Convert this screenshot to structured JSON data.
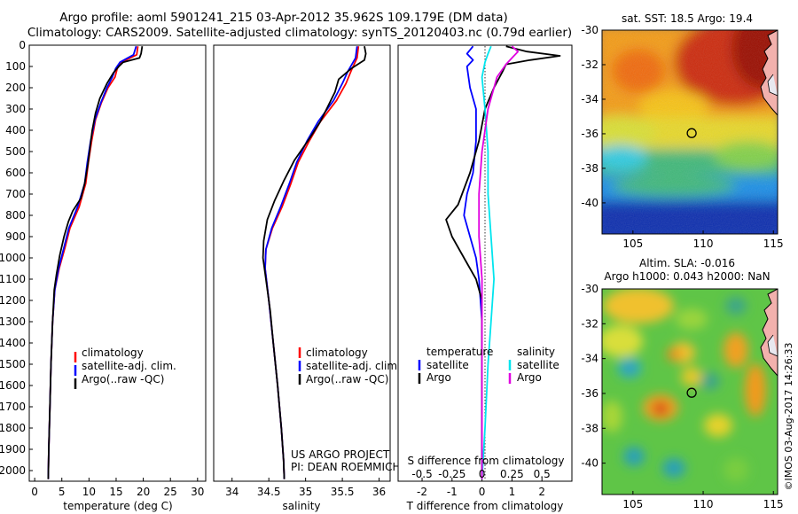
{
  "title": {
    "line1": "Argo profile: aoml 5901241_215 03-Apr-2012 35.962S 109.179E (DM data)",
    "line2": "Climatology: CARS2009. Satellite-adjusted climatology: synTS_20120403.nc (0.79d earlier)"
  },
  "colors": {
    "climatology": "#ff0000",
    "satellite": "#0000ff",
    "argo": "#000000",
    "sal_satellite": "#00e5ee",
    "sal_argo": "#e000e0"
  },
  "depth_axis": {
    "ticks": [
      0,
      100,
      200,
      300,
      400,
      500,
      600,
      700,
      800,
      900,
      1000,
      1100,
      1200,
      1300,
      1400,
      1500,
      1600,
      1700,
      1800,
      1900,
      2000
    ],
    "range": [
      0,
      2050
    ]
  },
  "chart_data": [
    {
      "type": "line",
      "id": "temperature",
      "xlabel": "temperature (deg C)",
      "xlim": [
        -1,
        31.5
      ],
      "xticks": [
        0,
        5,
        10,
        15,
        20,
        25,
        30
      ],
      "legend": [
        "climatology",
        "satellite-adj. clim.",
        "Argo(..raw -QC)"
      ],
      "series": [
        {
          "name": "climatology",
          "color": "#ff0000",
          "points": [
            [
              19.0,
              5
            ],
            [
              18.8,
              45
            ],
            [
              16.0,
              80
            ],
            [
              15.2,
              110
            ],
            [
              14.8,
              150
            ],
            [
              13.5,
              200
            ],
            [
              12.3,
              270
            ],
            [
              11.2,
              350
            ],
            [
              10.5,
              450
            ],
            [
              9.9,
              550
            ],
            [
              9.4,
              650
            ],
            [
              8.2,
              760
            ],
            [
              6.5,
              860
            ],
            [
              5.6,
              950
            ],
            [
              4.5,
              1050
            ],
            [
              3.7,
              1150
            ],
            [
              3.3,
              1300
            ],
            [
              3.0,
              1500
            ],
            [
              2.8,
              1700
            ],
            [
              2.6,
              1900
            ],
            [
              2.5,
              2040
            ]
          ]
        },
        {
          "name": "satellite-adj. clim.",
          "color": "#0000ff",
          "points": [
            [
              18.7,
              5
            ],
            [
              18.2,
              45
            ],
            [
              15.7,
              80
            ],
            [
              14.9,
              110
            ],
            [
              14.3,
              150
            ],
            [
              13.3,
              200
            ],
            [
              12.2,
              270
            ],
            [
              11.1,
              350
            ],
            [
              10.3,
              450
            ],
            [
              9.7,
              550
            ],
            [
              9.2,
              650
            ],
            [
              7.9,
              760
            ],
            [
              6.3,
              860
            ],
            [
              5.4,
              950
            ],
            [
              4.4,
              1050
            ],
            [
              3.7,
              1150
            ],
            [
              3.3,
              1300
            ],
            [
              3.0,
              1500
            ],
            [
              2.8,
              1700
            ],
            [
              2.6,
              1900
            ],
            [
              2.5,
              2040
            ]
          ]
        },
        {
          "name": "Argo(..raw -QC)",
          "color": "#000000",
          "points": [
            [
              19.8,
              5
            ],
            [
              19.6,
              40
            ],
            [
              19.3,
              60
            ],
            [
              16.3,
              80
            ],
            [
              15.5,
              100
            ],
            [
              14.5,
              130
            ],
            [
              13.3,
              180
            ],
            [
              12.0,
              250
            ],
            [
              11.2,
              320
            ],
            [
              10.6,
              400
            ],
            [
              10.2,
              480
            ],
            [
              9.8,
              560
            ],
            [
              9.2,
              650
            ],
            [
              8.5,
              720
            ],
            [
              7.0,
              780
            ],
            [
              6.2,
              830
            ],
            [
              5.4,
              900
            ],
            [
              4.6,
              990
            ],
            [
              4.0,
              1080
            ],
            [
              3.6,
              1150
            ],
            [
              3.3,
              1300
            ],
            [
              3.0,
              1500
            ],
            [
              2.8,
              1700
            ],
            [
              2.6,
              1900
            ],
            [
              2.5,
              2040
            ]
          ]
        }
      ]
    },
    {
      "type": "line",
      "id": "salinity",
      "xlabel": "salinity",
      "xlim": [
        33.75,
        36.15
      ],
      "xticks": [
        34,
        34.5,
        35,
        35.5,
        36
      ],
      "legend": [
        "climatology",
        "satellite-adj. clim.",
        "Argo(..raw -QC)"
      ],
      "series": [
        {
          "name": "climatology",
          "color": "#ff0000",
          "points": [
            [
              35.72,
              5
            ],
            [
              35.7,
              60
            ],
            [
              35.62,
              120
            ],
            [
              35.55,
              180
            ],
            [
              35.42,
              260
            ],
            [
              35.2,
              360
            ],
            [
              35.05,
              450
            ],
            [
              34.9,
              550
            ],
            [
              34.8,
              650
            ],
            [
              34.68,
              760
            ],
            [
              34.55,
              860
            ],
            [
              34.46,
              960
            ],
            [
              34.45,
              1050
            ],
            [
              34.5,
              1200
            ],
            [
              34.56,
              1400
            ],
            [
              34.62,
              1600
            ],
            [
              34.67,
              1800
            ],
            [
              34.7,
              1950
            ],
            [
              34.71,
              2040
            ]
          ]
        },
        {
          "name": "satellite-adj. clim.",
          "color": "#0000ff",
          "points": [
            [
              35.7,
              5
            ],
            [
              35.68,
              60
            ],
            [
              35.58,
              120
            ],
            [
              35.5,
              180
            ],
            [
              35.38,
              260
            ],
            [
              35.17,
              360
            ],
            [
              35.02,
              450
            ],
            [
              34.88,
              550
            ],
            [
              34.78,
              650
            ],
            [
              34.66,
              760
            ],
            [
              34.54,
              860
            ],
            [
              34.46,
              960
            ],
            [
              34.45,
              1050
            ],
            [
              34.5,
              1200
            ],
            [
              34.56,
              1400
            ],
            [
              34.62,
              1600
            ],
            [
              34.67,
              1800
            ],
            [
              34.7,
              1950
            ],
            [
              34.71,
              2040
            ]
          ]
        },
        {
          "name": "Argo(..raw -QC)",
          "color": "#000000",
          "points": [
            [
              35.8,
              5
            ],
            [
              35.82,
              40
            ],
            [
              35.8,
              70
            ],
            [
              35.62,
              110
            ],
            [
              35.45,
              160
            ],
            [
              35.4,
              220
            ],
            [
              35.3,
              290
            ],
            [
              35.2,
              360
            ],
            [
              35.05,
              440
            ],
            [
              34.85,
              540
            ],
            [
              34.7,
              640
            ],
            [
              34.58,
              730
            ],
            [
              34.48,
              820
            ],
            [
              34.43,
              920
            ],
            [
              34.42,
              1000
            ],
            [
              34.46,
              1100
            ],
            [
              34.52,
              1250
            ],
            [
              34.56,
              1400
            ],
            [
              34.62,
              1600
            ],
            [
              34.67,
              1800
            ],
            [
              34.7,
              1950
            ],
            [
              34.71,
              2040
            ]
          ]
        }
      ]
    },
    {
      "type": "line",
      "id": "difference",
      "xlabel": "T difference from climatology",
      "xlabel2": "S difference from climatology",
      "xlim": [
        -2.8,
        3.0
      ],
      "xticks": [
        -2,
        -1,
        0,
        1,
        2
      ],
      "sticks": [
        {
          "label": "-0.5",
          "x": -2
        },
        {
          "label": "-0.25",
          "x": -1
        },
        {
          "label": "0",
          "x": 0
        },
        {
          "label": "0.25",
          "x": 1
        },
        {
          "label": "0.5",
          "x": 2
        }
      ],
      "legend_temp_title": "temperature",
      "legend_sal_title": "salinity",
      "legend": {
        "t_sat": "satellite",
        "t_argo": "Argo",
        "s_sat": "satellite",
        "s_argo": "Argo"
      },
      "series": [
        {
          "name": "T satellite",
          "color": "#0000ff",
          "points": [
            [
              -0.3,
              5
            ],
            [
              -0.5,
              40
            ],
            [
              -0.3,
              70
            ],
            [
              -0.5,
              100
            ],
            [
              -0.4,
              200
            ],
            [
              -0.2,
              300
            ],
            [
              -0.2,
              450
            ],
            [
              -0.3,
              600
            ],
            [
              -0.5,
              700
            ],
            [
              -0.6,
              800
            ],
            [
              -0.4,
              900
            ],
            [
              -0.2,
              1000
            ],
            [
              -0.1,
              1100
            ],
            [
              0.0,
              1300
            ],
            [
              0.0,
              1600
            ],
            [
              0.0,
              1900
            ],
            [
              0.0,
              2040
            ]
          ]
        },
        {
          "name": "T Argo",
          "color": "#000000",
          "points": [
            [
              0.8,
              5
            ],
            [
              1.5,
              30
            ],
            [
              2.6,
              50
            ],
            [
              1.6,
              70
            ],
            [
              0.8,
              90
            ],
            [
              0.7,
              120
            ],
            [
              0.4,
              200
            ],
            [
              0.1,
              300
            ],
            [
              -0.1,
              450
            ],
            [
              -0.4,
              600
            ],
            [
              -0.8,
              750
            ],
            [
              -1.2,
              820
            ],
            [
              -1.0,
              900
            ],
            [
              -0.6,
              1000
            ],
            [
              -0.2,
              1100
            ],
            [
              0.0,
              1200
            ],
            [
              0.0,
              1500
            ],
            [
              0.0,
              1900
            ],
            [
              0.0,
              2040
            ]
          ]
        },
        {
          "name": "S satellite",
          "color": "#00e5ee",
          "points": [
            [
              0.3,
              5
            ],
            [
              0.2,
              40
            ],
            [
              0.1,
              80
            ],
            [
              0.0,
              150
            ],
            [
              0.1,
              300
            ],
            [
              0.2,
              500
            ],
            [
              0.2,
              700
            ],
            [
              0.3,
              900
            ],
            [
              0.4,
              1100
            ],
            [
              0.3,
              1300
            ],
            [
              0.2,
              1500
            ],
            [
              0.1,
              1800
            ],
            [
              0.0,
              2040
            ]
          ]
        },
        {
          "name": "S Argo",
          "color": "#e000e0",
          "points": [
            [
              1.0,
              5
            ],
            [
              1.2,
              30
            ],
            [
              1.0,
              60
            ],
            [
              0.8,
              90
            ],
            [
              0.5,
              150
            ],
            [
              0.2,
              300
            ],
            [
              0.0,
              500
            ],
            [
              -0.1,
              700
            ],
            [
              -0.1,
              900
            ],
            [
              0.0,
              1100
            ],
            [
              0.0,
              1400
            ],
            [
              0.0,
              2040
            ]
          ]
        }
      ]
    },
    {
      "type": "heatmap",
      "id": "sst-map",
      "title": "sat. SST: 18.5 Argo: 19.4",
      "xticks": [
        105,
        110,
        115
      ],
      "yticks": [
        -30,
        -32,
        -34,
        -36,
        -38,
        -40
      ],
      "xlim": [
        102.8,
        115.3
      ],
      "ylim": [
        -41.8,
        -30
      ],
      "marker": {
        "lon": 109.18,
        "lat": -35.96
      }
    },
    {
      "type": "heatmap",
      "id": "sla-map",
      "title1": "Altim. SLA: -0.016",
      "title2": "Argo h1000: 0.043 h2000: NaN",
      "xticks": [
        105,
        110,
        115
      ],
      "yticks": [
        -30,
        -32,
        -34,
        -36,
        -38,
        -40
      ],
      "xlim": [
        102.8,
        115.3
      ],
      "ylim": [
        -41.8,
        -30
      ],
      "marker": {
        "lon": 109.18,
        "lat": -35.96
      }
    }
  ],
  "credits": {
    "project": "US ARGO PROJECT",
    "pi": "PI: DEAN ROEMMICH",
    "imos": "©IMOS 03-Aug-2017 14:26:33"
  }
}
